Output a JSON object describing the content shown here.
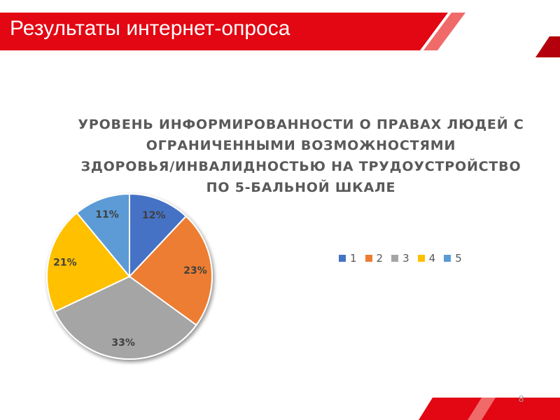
{
  "slide": {
    "title": "Результаты интернет-опроса",
    "page_number": "8"
  },
  "colors": {
    "brand_red": "#e30613",
    "dark_red": "#b3000c"
  },
  "chart_data": {
    "type": "pie",
    "title_lines": [
      "УРОВЕНЬ ИНФОРМИРОВАННОСТИ О ПРАВАХ ЛЮДЕЙ С",
      "ОГРАНИЧЕННЫМИ ВОЗМОЖНОСТЯМИ",
      "ЗДОРОВЬЯ/ИНВАЛИДНОСТЬЮ НА ТРУДОУСТРОЙСТВО",
      "ПО 5-БАЛЬНОЙ ШКАЛЕ"
    ],
    "categories": [
      "1",
      "2",
      "3",
      "4",
      "5"
    ],
    "values": [
      12,
      23,
      33,
      21,
      11
    ],
    "labels": [
      "12%",
      "23%",
      "33%",
      "21%",
      "11%"
    ],
    "colors": [
      "#4472c4",
      "#ed7d31",
      "#a5a5a5",
      "#ffc000",
      "#5b9bd5"
    ],
    "legend_position": "right"
  }
}
